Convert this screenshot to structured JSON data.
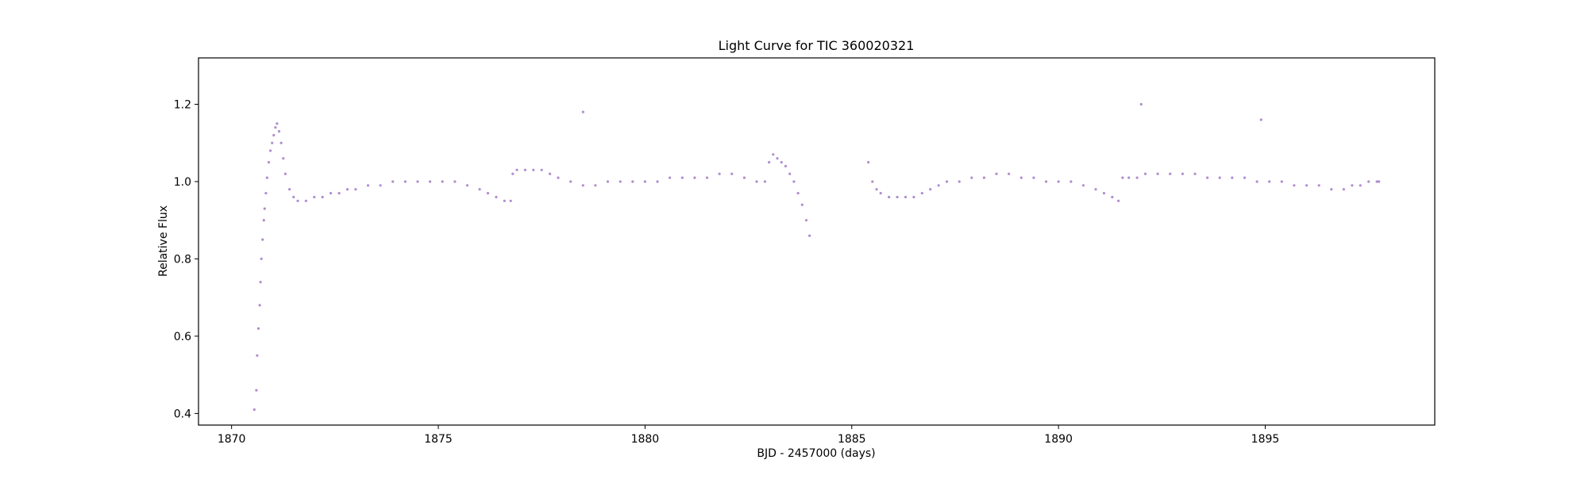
{
  "chart_data": {
    "type": "scatter",
    "title": "Light Curve for TIC 360020321",
    "xlabel": "BJD - 2457000 (days)",
    "ylabel": "Relative Flux",
    "xlim": [
      1869.2,
      1899.1
    ],
    "ylim": [
      0.37,
      1.32
    ],
    "xticks": [
      1870,
      1875,
      1880,
      1885,
      1890,
      1895
    ],
    "yticks": [
      0.4,
      0.6,
      0.8,
      1.0,
      1.2
    ],
    "xtick_labels": [
      "1870",
      "1875",
      "1880",
      "1885",
      "1890",
      "1895"
    ],
    "ytick_labels": [
      "0.4",
      "0.6",
      "0.8",
      "1.0",
      "1.2"
    ],
    "grid": false,
    "marker_color": "#9467bd",
    "series": [
      {
        "x": [
          1870.55,
          1870.6,
          1870.62,
          1870.65,
          1870.68,
          1870.7,
          1870.72,
          1870.75,
          1870.78,
          1870.8,
          1870.83,
          1870.86,
          1870.9,
          1870.94,
          1870.98,
          1871.02,
          1871.06,
          1871.1,
          1871.15,
          1871.2,
          1871.25,
          1871.3,
          1871.4,
          1871.5,
          1871.6,
          1871.8,
          1872.0,
          1872.2,
          1872.4,
          1872.6,
          1872.8,
          1873.0,
          1873.3,
          1873.6,
          1873.9,
          1874.2,
          1874.5,
          1874.8,
          1875.1,
          1875.4,
          1875.7,
          1876.0,
          1876.2,
          1876.4,
          1876.6,
          1876.75,
          1876.8,
          1876.9,
          1877.1,
          1877.3,
          1877.5,
          1877.7,
          1877.9,
          1878.2,
          1878.5,
          1878.8,
          1879.1,
          1879.4,
          1879.7,
          1880.0,
          1880.3,
          1880.6,
          1880.9,
          1881.2,
          1881.5,
          1881.8,
          1882.1,
          1882.4,
          1882.7,
          1882.9,
          1883.0,
          1883.1,
          1883.2,
          1883.3,
          1883.4,
          1883.5,
          1883.6,
          1883.7,
          1883.8,
          1883.9,
          1883.98,
          1885.4,
          1885.5,
          1885.6,
          1885.7,
          1885.9,
          1886.1,
          1886.3,
          1886.5,
          1886.7,
          1886.9,
          1887.1,
          1887.3,
          1887.6,
          1887.9,
          1888.2,
          1888.5,
          1888.8,
          1889.1,
          1889.4,
          1889.7,
          1890.0,
          1890.3,
          1890.6,
          1890.9,
          1891.1,
          1891.3,
          1891.45,
          1891.55,
          1891.7,
          1891.9,
          1892.1,
          1892.4,
          1892.7,
          1893.0,
          1893.3,
          1893.6,
          1893.9,
          1894.2,
          1894.5,
          1894.8,
          1895.1,
          1895.4,
          1895.7,
          1896.0,
          1896.3,
          1896.6,
          1896.9,
          1897.1,
          1897.3,
          1897.5,
          1897.7,
          1897.75,
          1878.5,
          1892.0,
          1894.9
        ],
        "y": [
          0.41,
          0.46,
          0.55,
          0.62,
          0.68,
          0.74,
          0.8,
          0.85,
          0.9,
          0.93,
          0.97,
          1.01,
          1.05,
          1.08,
          1.1,
          1.12,
          1.14,
          1.15,
          1.13,
          1.1,
          1.06,
          1.02,
          0.98,
          0.96,
          0.95,
          0.95,
          0.96,
          0.96,
          0.97,
          0.97,
          0.98,
          0.98,
          0.99,
          0.99,
          1.0,
          1.0,
          1.0,
          1.0,
          1.0,
          1.0,
          0.99,
          0.98,
          0.97,
          0.96,
          0.95,
          0.95,
          1.02,
          1.03,
          1.03,
          1.03,
          1.03,
          1.02,
          1.01,
          1.0,
          0.99,
          0.99,
          1.0,
          1.0,
          1.0,
          1.0,
          1.0,
          1.01,
          1.01,
          1.01,
          1.01,
          1.02,
          1.02,
          1.01,
          1.0,
          1.0,
          1.05,
          1.07,
          1.06,
          1.05,
          1.04,
          1.02,
          1.0,
          0.97,
          0.94,
          0.9,
          0.86,
          1.05,
          1.0,
          0.98,
          0.97,
          0.96,
          0.96,
          0.96,
          0.96,
          0.97,
          0.98,
          0.99,
          1.0,
          1.0,
          1.01,
          1.01,
          1.02,
          1.02,
          1.01,
          1.01,
          1.0,
          1.0,
          1.0,
          0.99,
          0.98,
          0.97,
          0.96,
          0.95,
          1.01,
          1.01,
          1.01,
          1.02,
          1.02,
          1.02,
          1.02,
          1.02,
          1.01,
          1.01,
          1.01,
          1.01,
          1.0,
          1.0,
          1.0,
          0.99,
          0.99,
          0.99,
          0.98,
          0.98,
          0.99,
          0.99,
          1.0,
          1.0,
          1.0,
          1.18,
          1.2,
          1.16
        ]
      }
    ]
  }
}
